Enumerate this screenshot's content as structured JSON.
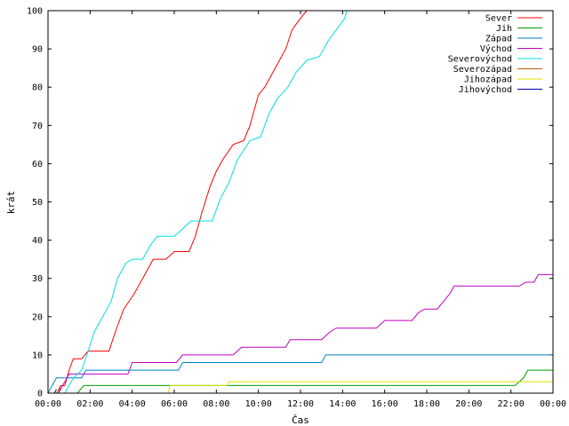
{
  "chart_data": {
    "type": "line",
    "title": "",
    "xlabel": "Čas",
    "ylabel": "krát",
    "xlim": [
      0,
      24
    ],
    "ylim": [
      0,
      100
    ],
    "x_ticks": [
      {
        "value": 0,
        "label": "00:00"
      },
      {
        "value": 2,
        "label": "02:00"
      },
      {
        "value": 4,
        "label": "04:00"
      },
      {
        "value": 6,
        "label": "06:00"
      },
      {
        "value": 8,
        "label": "08:00"
      },
      {
        "value": 10,
        "label": "10:00"
      },
      {
        "value": 12,
        "label": "12:00"
      },
      {
        "value": 14,
        "label": "14:00"
      },
      {
        "value": 16,
        "label": "16:00"
      },
      {
        "value": 18,
        "label": "18:00"
      },
      {
        "value": 20,
        "label": "20:00"
      },
      {
        "value": 22,
        "label": "22:00"
      },
      {
        "value": 24,
        "label": "00:00"
      }
    ],
    "y_ticks": [
      0,
      10,
      20,
      30,
      40,
      50,
      60,
      70,
      80,
      90,
      100
    ],
    "grid": false,
    "legend_position": "top-right",
    "series": [
      {
        "name": "Sever",
        "color": "#ff0000",
        "points": [
          [
            0.5,
            0
          ],
          [
            0.6,
            2
          ],
          [
            0.8,
            2
          ],
          [
            1.0,
            6
          ],
          [
            1.2,
            9
          ],
          [
            1.6,
            9
          ],
          [
            1.9,
            11
          ],
          [
            2.9,
            11
          ],
          [
            3.2,
            16
          ],
          [
            3.6,
            22
          ],
          [
            4.1,
            26
          ],
          [
            4.6,
            31
          ],
          [
            5.0,
            35
          ],
          [
            5.6,
            35
          ],
          [
            6.0,
            37
          ],
          [
            6.7,
            37
          ],
          [
            7.0,
            41
          ],
          [
            7.3,
            47
          ],
          [
            7.7,
            54
          ],
          [
            8.0,
            58
          ],
          [
            8.3,
            61
          ],
          [
            8.8,
            65
          ],
          [
            9.3,
            66
          ],
          [
            9.6,
            70
          ],
          [
            10.0,
            78
          ],
          [
            10.3,
            80
          ],
          [
            10.6,
            83
          ],
          [
            11.0,
            87
          ],
          [
            11.3,
            90
          ],
          [
            11.6,
            95
          ],
          [
            12.0,
            98
          ],
          [
            12.3,
            100
          ]
        ]
      },
      {
        "name": "Jih",
        "color": "#00a000",
        "points": [
          [
            0,
            0
          ],
          [
            1.4,
            0
          ],
          [
            1.7,
            2
          ],
          [
            5.8,
            2
          ],
          [
            22.2,
            2
          ],
          [
            22.6,
            4
          ],
          [
            22.8,
            6
          ],
          [
            24,
            6
          ]
        ]
      },
      {
        "name": "Západ",
        "color": "#0080c0",
        "points": [
          [
            0,
            0
          ],
          [
            0.2,
            2
          ],
          [
            0.4,
            4
          ],
          [
            1.6,
            4
          ],
          [
            1.8,
            6
          ],
          [
            6.2,
            6
          ],
          [
            6.4,
            8
          ],
          [
            13.0,
            8
          ],
          [
            13.2,
            10
          ],
          [
            24,
            10
          ]
        ]
      },
      {
        "name": "Východ",
        "color": "#c000c0",
        "points": [
          [
            0,
            0
          ],
          [
            0.5,
            0
          ],
          [
            0.8,
            3
          ],
          [
            1.0,
            5
          ],
          [
            3.8,
            5
          ],
          [
            4.0,
            8
          ],
          [
            6.1,
            8
          ],
          [
            6.4,
            10
          ],
          [
            8.8,
            10
          ],
          [
            9.2,
            12
          ],
          [
            11.3,
            12
          ],
          [
            11.5,
            14
          ],
          [
            13.0,
            14
          ],
          [
            13.4,
            16
          ],
          [
            13.7,
            17
          ],
          [
            15.6,
            17
          ],
          [
            16.0,
            19
          ],
          [
            17.3,
            19
          ],
          [
            17.6,
            21
          ],
          [
            17.9,
            22
          ],
          [
            18.5,
            22
          ],
          [
            18.8,
            24
          ],
          [
            19.1,
            26
          ],
          [
            19.3,
            28
          ],
          [
            22.4,
            28
          ],
          [
            22.7,
            29
          ],
          [
            23.1,
            29
          ],
          [
            23.3,
            31
          ],
          [
            24,
            31
          ]
        ]
      },
      {
        "name": "Severovýchod",
        "color": "#00e0e0",
        "points": [
          [
            0.8,
            0
          ],
          [
            1.2,
            4
          ],
          [
            1.6,
            6
          ],
          [
            1.9,
            11
          ],
          [
            2.2,
            16
          ],
          [
            2.7,
            21
          ],
          [
            3.0,
            24
          ],
          [
            3.3,
            30
          ],
          [
            3.7,
            34
          ],
          [
            4.0,
            35
          ],
          [
            4.5,
            35
          ],
          [
            4.9,
            39
          ],
          [
            5.2,
            41
          ],
          [
            6.0,
            41
          ],
          [
            6.4,
            43
          ],
          [
            6.8,
            45
          ],
          [
            7.8,
            45
          ],
          [
            8.2,
            51
          ],
          [
            8.6,
            55
          ],
          [
            9.0,
            61
          ],
          [
            9.6,
            66
          ],
          [
            10.1,
            67
          ],
          [
            10.5,
            73
          ],
          [
            10.9,
            77
          ],
          [
            11.4,
            80
          ],
          [
            11.8,
            84
          ],
          [
            12.3,
            87
          ],
          [
            12.9,
            88
          ],
          [
            13.3,
            92
          ],
          [
            13.7,
            95
          ],
          [
            14.1,
            98
          ],
          [
            14.2,
            100
          ]
        ]
      },
      {
        "name": "Severozápad",
        "color": "#c06000",
        "points": [
          [
            0,
            0
          ],
          [
            0.4,
            0
          ],
          [
            0.5,
            1
          ],
          [
            0.6,
            2
          ]
        ]
      },
      {
        "name": "Jihozápad",
        "color": "#e0e000",
        "points": [
          [
            0,
            0
          ],
          [
            5.7,
            0
          ],
          [
            5.8,
            2
          ],
          [
            8.5,
            2
          ],
          [
            8.6,
            3
          ],
          [
            24,
            3
          ]
        ]
      },
      {
        "name": "Jihovýchod",
        "color": "#0000a0",
        "points": [
          [
            0,
            0
          ],
          [
            0.3,
            0
          ],
          [
            0.4,
            1
          ]
        ]
      }
    ]
  }
}
